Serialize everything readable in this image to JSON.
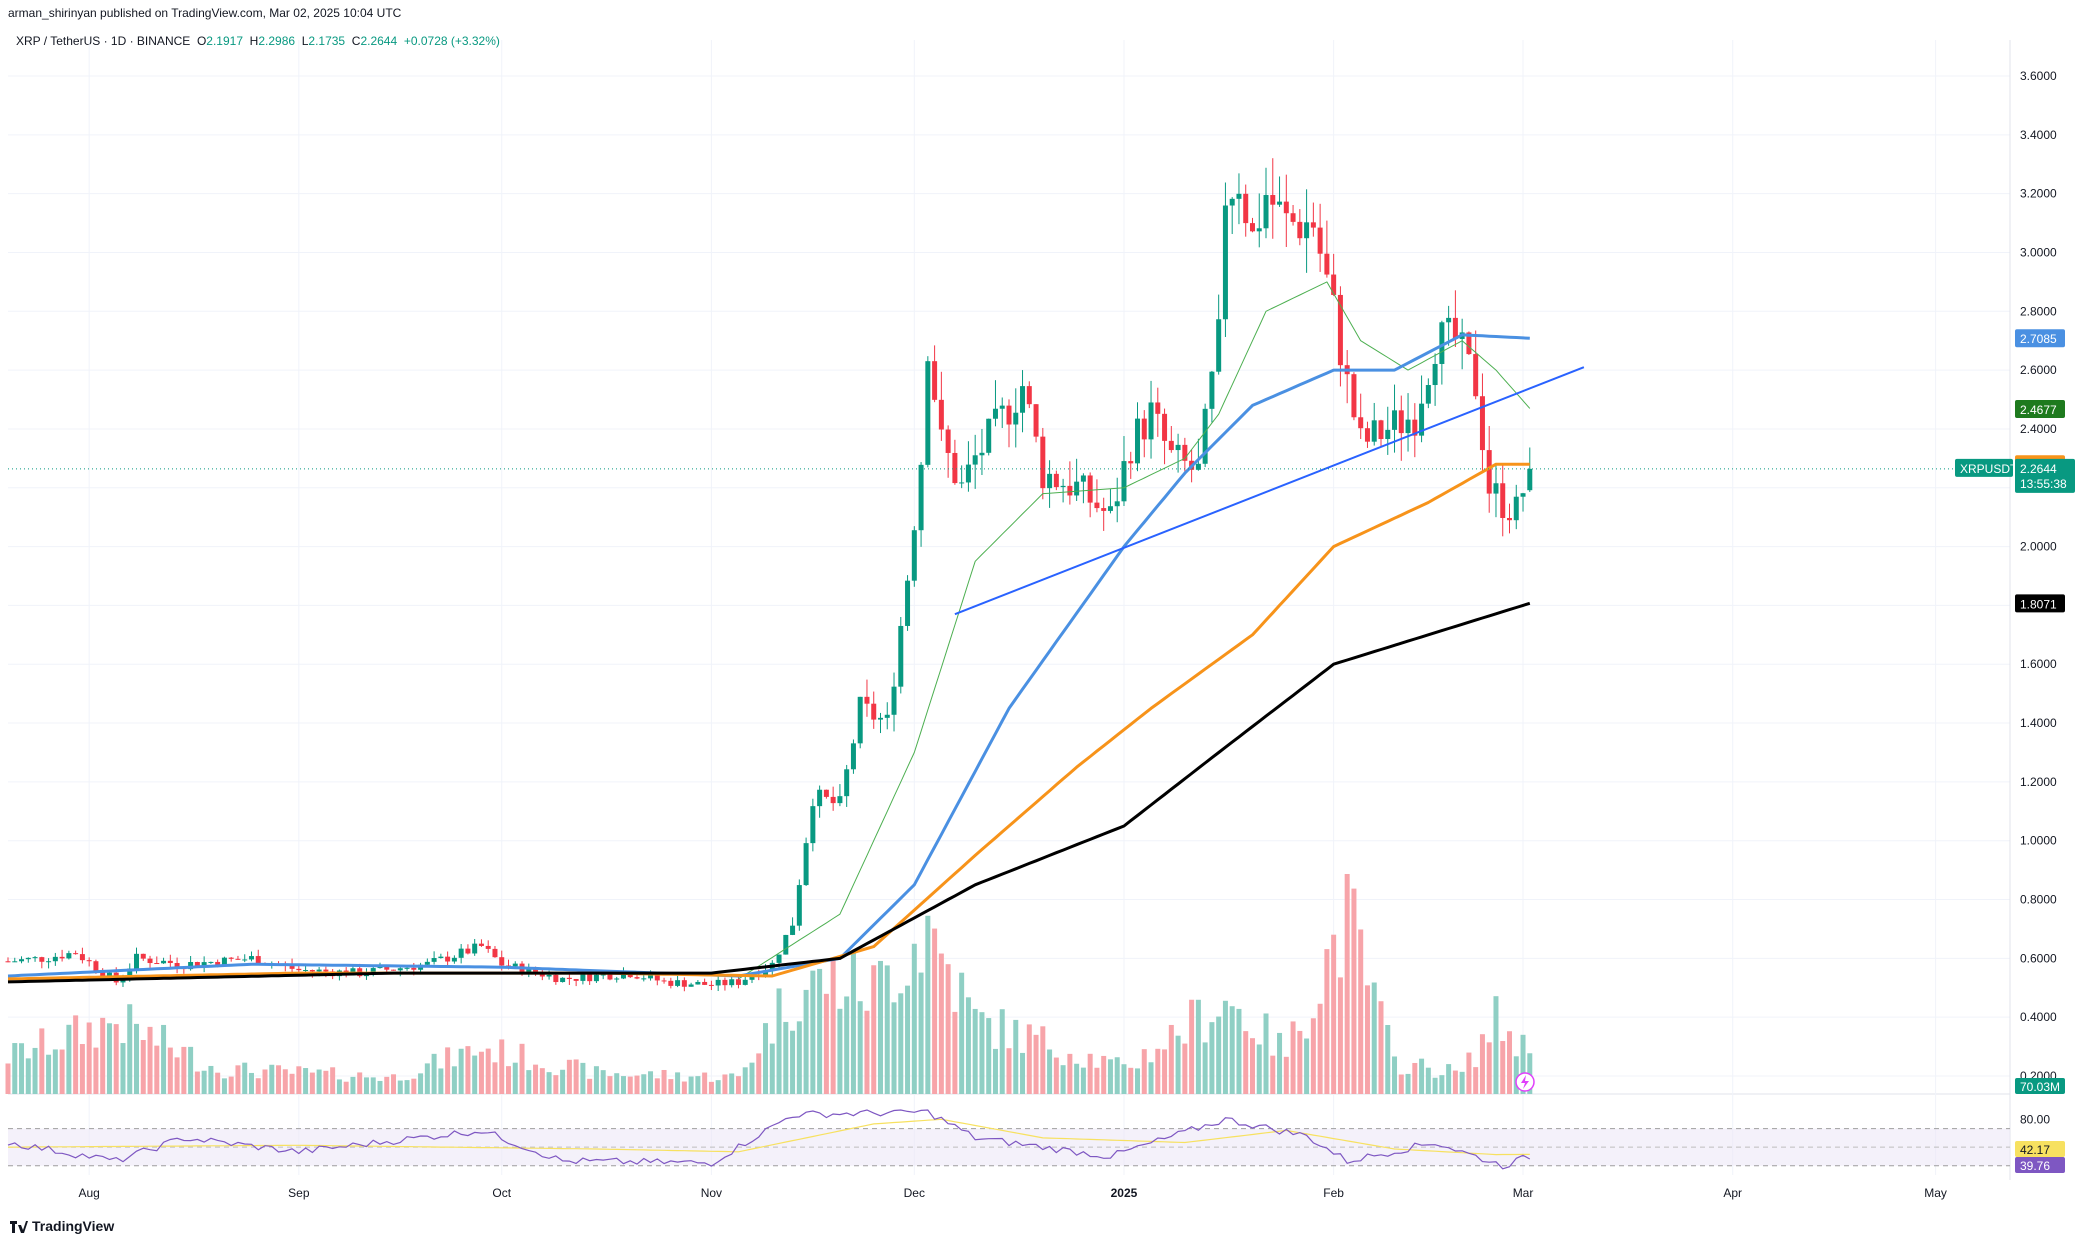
{
  "attribution": "arman_shirinyan published on TradingView.com, Mar 02, 2025 10:04 UTC",
  "symbol": {
    "title": "XRP / TetherUS · 1D · BINANCE",
    "open_label": "O",
    "open": "2.1917",
    "high_label": "H",
    "high": "2.2986",
    "low_label": "L",
    "low": "2.1735",
    "close_label": "C",
    "close": "2.2644",
    "change": "+0.0728 (+3.32%)"
  },
  "footer": {
    "brand": "TradingView"
  },
  "colors": {
    "up": "#089981",
    "down": "#f23645",
    "vol_up": "#8fcfc4",
    "vol_down": "#f7a4a9",
    "ma20": "#4caf50",
    "ma50": "#4a90e2",
    "ma100": "#f7931a",
    "ma200": "#000000",
    "trendline": "#2962ff",
    "rsi": "#7e57c2",
    "rsi_ma": "#f7e160"
  },
  "chart_data": {
    "type": "candlestick",
    "y_axis": {
      "ticks": [
        "3.6000",
        "3.4000",
        "3.2000",
        "3.0000",
        "2.8000",
        "2.6000",
        "2.4000",
        "2.2000",
        "2.0000",
        "1.8000",
        "1.6000",
        "1.4000",
        "1.2000",
        "1.0000",
        "0.8000",
        "0.6000",
        "0.4000",
        "0.2000"
      ],
      "range": [
        0.2,
        3.6
      ]
    },
    "x_axis": {
      "labels": [
        {
          "text": "Aug",
          "date": "2024-08-01",
          "bold": false
        },
        {
          "text": "Sep",
          "date": "2024-09-01",
          "bold": false
        },
        {
          "text": "Oct",
          "date": "2024-10-01",
          "bold": false
        },
        {
          "text": "Nov",
          "date": "2024-11-01",
          "bold": false
        },
        {
          "text": "Dec",
          "date": "2024-12-01",
          "bold": false
        },
        {
          "text": "2025",
          "date": "2025-01-01",
          "bold": true
        },
        {
          "text": "Feb",
          "date": "2025-02-01",
          "bold": false
        },
        {
          "text": "Mar",
          "date": "2025-03-01",
          "bold": false
        },
        {
          "text": "Apr",
          "date": "2025-04-01",
          "bold": false
        },
        {
          "text": "May",
          "date": "2025-05-01",
          "bold": false
        }
      ]
    },
    "price_keypoints": [
      [
        "2024-07-20",
        0.59
      ],
      [
        "2024-07-25",
        0.6
      ],
      [
        "2024-07-30",
        0.62
      ],
      [
        "2024-08-05",
        0.52
      ],
      [
        "2024-08-08",
        0.6
      ],
      [
        "2024-08-15",
        0.58
      ],
      [
        "2024-08-25",
        0.6
      ],
      [
        "2024-09-01",
        0.56
      ],
      [
        "2024-09-10",
        0.55
      ],
      [
        "2024-09-20",
        0.58
      ],
      [
        "2024-09-28",
        0.64
      ],
      [
        "2024-10-01",
        0.58
      ],
      [
        "2024-10-10",
        0.53
      ],
      [
        "2024-10-20",
        0.55
      ],
      [
        "2024-10-25",
        0.52
      ],
      [
        "2024-11-01",
        0.51
      ],
      [
        "2024-11-05",
        0.52
      ],
      [
        "2024-11-10",
        0.58
      ],
      [
        "2024-11-13",
        0.72
      ],
      [
        "2024-11-16",
        1.15
      ],
      [
        "2024-11-20",
        1.12
      ],
      [
        "2024-11-23",
        1.45
      ],
      [
        "2024-11-27",
        1.4
      ],
      [
        "2024-11-30",
        1.9
      ],
      [
        "2024-12-02",
        2.3
      ],
      [
        "2024-12-03",
        2.7
      ],
      [
        "2024-12-05",
        2.35
      ],
      [
        "2024-12-08",
        2.2
      ],
      [
        "2024-12-10",
        2.3
      ],
      [
        "2024-12-13",
        2.4
      ],
      [
        "2024-12-17",
        2.55
      ],
      [
        "2024-12-20",
        2.25
      ],
      [
        "2024-12-25",
        2.2
      ],
      [
        "2024-12-30",
        2.1
      ],
      [
        "2025-01-02",
        2.35
      ],
      [
        "2025-01-05",
        2.45
      ],
      [
        "2025-01-08",
        2.3
      ],
      [
        "2025-01-12",
        2.25
      ],
      [
        "2025-01-15",
        2.7
      ],
      [
        "2025-01-16",
        3.2
      ],
      [
        "2025-01-18",
        3.25
      ],
      [
        "2025-01-20",
        3.05
      ],
      [
        "2025-01-22",
        3.2
      ],
      [
        "2025-01-25",
        3.1
      ],
      [
        "2025-01-29",
        3.1
      ],
      [
        "2025-02-01",
        2.8
      ],
      [
        "2025-02-03",
        2.55
      ],
      [
        "2025-02-05",
        2.35
      ],
      [
        "2025-02-09",
        2.4
      ],
      [
        "2025-02-13",
        2.45
      ],
      [
        "2025-02-16",
        2.7
      ],
      [
        "2025-02-19",
        2.7
      ],
      [
        "2025-02-22",
        2.55
      ],
      [
        "2025-02-24",
        2.2
      ],
      [
        "2025-02-26",
        2.15
      ],
      [
        "2025-02-28",
        2.12
      ],
      [
        "2025-03-02",
        2.2644
      ]
    ],
    "volume_profile": [
      [
        "2024-07-20",
        0.18
      ],
      [
        "2024-08-05",
        0.35
      ],
      [
        "2024-08-20",
        0.12
      ],
      [
        "2024-09-15",
        0.08
      ],
      [
        "2024-09-28",
        0.22
      ],
      [
        "2024-10-15",
        0.1
      ],
      [
        "2024-11-05",
        0.08
      ],
      [
        "2024-11-12",
        0.45
      ],
      [
        "2024-11-18",
        0.55
      ],
      [
        "2024-11-25",
        0.5
      ],
      [
        "2024-12-03",
        0.8
      ],
      [
        "2024-12-10",
        0.35
      ],
      [
        "2024-12-20",
        0.25
      ],
      [
        "2025-01-01",
        0.12
      ],
      [
        "2025-01-16",
        0.45
      ],
      [
        "2025-01-25",
        0.2
      ],
      [
        "2025-02-03",
        0.85
      ],
      [
        "2025-02-10",
        0.15
      ],
      [
        "2025-02-20",
        0.1
      ],
      [
        "2025-02-25",
        0.35
      ],
      [
        "2025-03-02",
        0.2
      ]
    ],
    "series": [
      {
        "name": "ma20",
        "points": [
          [
            "2024-11-05",
            0.53
          ],
          [
            "2024-11-20",
            0.75
          ],
          [
            "2024-12-01",
            1.3
          ],
          [
            "2024-12-10",
            1.95
          ],
          [
            "2024-12-20",
            2.18
          ],
          [
            "2025-01-01",
            2.2
          ],
          [
            "2025-01-10",
            2.3
          ],
          [
            "2025-01-15",
            2.45
          ],
          [
            "2025-01-22",
            2.8
          ],
          [
            "2025-01-31",
            2.9
          ],
          [
            "2025-02-05",
            2.7
          ],
          [
            "2025-02-12",
            2.6
          ],
          [
            "2025-02-20",
            2.7
          ],
          [
            "2025-02-25",
            2.6
          ],
          [
            "2025-03-02",
            2.47
          ]
        ]
      },
      {
        "name": "ma50",
        "points": [
          [
            "2024-07-20",
            0.54
          ],
          [
            "2024-08-25",
            0.58
          ],
          [
            "2024-10-01",
            0.57
          ],
          [
            "2024-11-05",
            0.54
          ],
          [
            "2024-11-20",
            0.6
          ],
          [
            "2024-12-01",
            0.85
          ],
          [
            "2024-12-15",
            1.45
          ],
          [
            "2025-01-01",
            2.0
          ],
          [
            "2025-01-10",
            2.25
          ],
          [
            "2025-01-20",
            2.48
          ],
          [
            "2025-02-01",
            2.6
          ],
          [
            "2025-02-10",
            2.6
          ],
          [
            "2025-02-20",
            2.72
          ],
          [
            "2025-03-02",
            2.7085
          ]
        ]
      },
      {
        "name": "ma100",
        "points": [
          [
            "2024-07-20",
            0.53
          ],
          [
            "2024-09-01",
            0.55
          ],
          [
            "2024-10-15",
            0.55
          ],
          [
            "2024-11-10",
            0.54
          ],
          [
            "2024-11-25",
            0.64
          ],
          [
            "2024-12-10",
            0.95
          ],
          [
            "2024-12-25",
            1.25
          ],
          [
            "2025-01-05",
            1.45
          ],
          [
            "2025-01-20",
            1.7
          ],
          [
            "2025-02-01",
            2.0
          ],
          [
            "2025-02-15",
            2.15
          ],
          [
            "2025-02-25",
            2.28
          ],
          [
            "2025-03-02",
            2.28
          ]
        ]
      },
      {
        "name": "ma200",
        "points": [
          [
            "2024-07-20",
            0.52
          ],
          [
            "2024-09-15",
            0.55
          ],
          [
            "2024-11-01",
            0.55
          ],
          [
            "2024-11-20",
            0.6
          ],
          [
            "2024-12-10",
            0.85
          ],
          [
            "2025-01-01",
            1.05
          ],
          [
            "2025-01-15",
            1.3
          ],
          [
            "2025-02-01",
            1.6
          ],
          [
            "2025-02-15",
            1.7
          ],
          [
            "2025-03-02",
            1.8071
          ]
        ]
      },
      {
        "name": "trendline",
        "points": [
          [
            "2024-12-07",
            1.77
          ],
          [
            "2025-03-10",
            2.61
          ]
        ]
      }
    ],
    "price_labels": [
      {
        "text": "2.7085",
        "value": 2.7085,
        "color": "#4a90e2"
      },
      {
        "text": "2.4677",
        "value": 2.4677,
        "color": "#1e7a1e"
      },
      {
        "text": "2.2800",
        "value": 2.28,
        "color": "#f7931a"
      },
      {
        "text": "2.2644",
        "value": 2.2644,
        "color": "#089981",
        "ticker": "XRPUSDT",
        "countdown": "13:55:38"
      },
      {
        "text": "1.8071",
        "value": 1.8071,
        "color": "#000000"
      }
    ],
    "volume_label": "70.03M",
    "rsi": {
      "levels": [
        "80.00"
      ],
      "value_labels": [
        {
          "text": "42.17",
          "color": "#f7e160"
        },
        {
          "text": "39.76",
          "color": "#7e57c2"
        }
      ],
      "keypoints": [
        [
          "2024-07-20",
          55
        ],
        [
          "2024-08-05",
          35
        ],
        [
          "2024-08-15",
          60
        ],
        [
          "2024-09-01",
          45
        ],
        [
          "2024-09-28",
          68
        ],
        [
          "2024-10-10",
          35
        ],
        [
          "2024-11-01",
          33
        ],
        [
          "2024-11-13",
          85
        ],
        [
          "2024-12-03",
          88
        ],
        [
          "2024-12-10",
          60
        ],
        [
          "2024-12-30",
          40
        ],
        [
          "2025-01-16",
          80
        ],
        [
          "2025-01-28",
          62
        ],
        [
          "2025-02-03",
          35
        ],
        [
          "2025-02-16",
          55
        ],
        [
          "2025-02-26",
          30
        ],
        [
          "2025-03-02",
          40
        ]
      ],
      "ma_keypoints": [
        [
          "2024-07-20",
          50
        ],
        [
          "2024-09-01",
          52
        ],
        [
          "2024-10-15",
          48
        ],
        [
          "2024-11-05",
          45
        ],
        [
          "2024-11-25",
          75
        ],
        [
          "2024-12-05",
          80
        ],
        [
          "2024-12-20",
          60
        ],
        [
          "2025-01-10",
          55
        ],
        [
          "2025-01-25",
          68
        ],
        [
          "2025-02-10",
          48
        ],
        [
          "2025-02-25",
          42
        ],
        [
          "2025-03-02",
          42.17
        ]
      ]
    }
  }
}
